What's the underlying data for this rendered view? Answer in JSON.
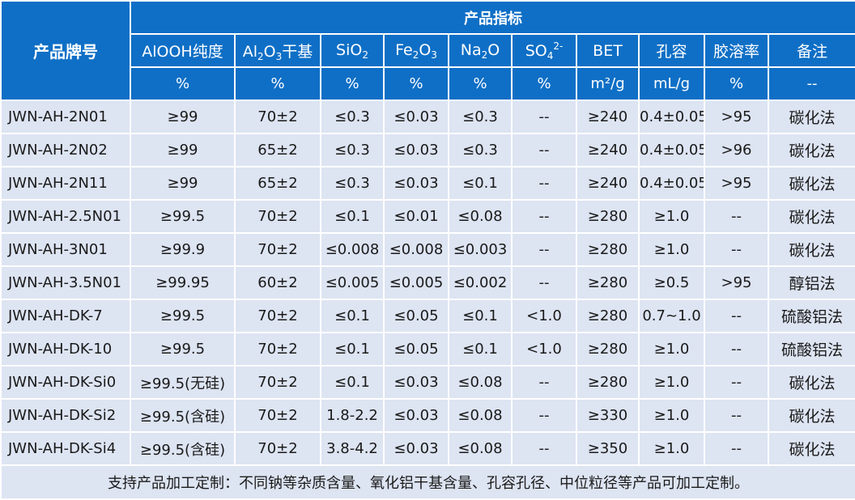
{
  "header": {
    "product_col": "产品牌号",
    "group": "产品指标",
    "columns": [
      {
        "key": "alooh",
        "parts": [
          {
            "t": "AlOOH纯度"
          }
        ],
        "unit": "%"
      },
      {
        "key": "al2o3",
        "parts": [
          {
            "t": "Al"
          },
          {
            "t": "2",
            "s": "sub"
          },
          {
            "t": "O"
          },
          {
            "t": "3",
            "s": "sub"
          },
          {
            "t": "干基"
          }
        ],
        "unit": "%"
      },
      {
        "key": "sio2",
        "parts": [
          {
            "t": "SiO"
          },
          {
            "t": "2",
            "s": "sub"
          }
        ],
        "unit": "%"
      },
      {
        "key": "fe2o3",
        "parts": [
          {
            "t": "Fe"
          },
          {
            "t": "2",
            "s": "sub"
          },
          {
            "t": "O"
          },
          {
            "t": "3",
            "s": "sub"
          }
        ],
        "unit": "%"
      },
      {
        "key": "na2o",
        "parts": [
          {
            "t": "Na"
          },
          {
            "t": "2",
            "s": "sub"
          },
          {
            "t": "O"
          }
        ],
        "unit": "%"
      },
      {
        "key": "so4",
        "parts": [
          {
            "t": "SO"
          },
          {
            "t": "4",
            "s": "sub"
          },
          {
            "t": "2-",
            "s": "sup"
          }
        ],
        "unit": "%"
      },
      {
        "key": "bet",
        "parts": [
          {
            "t": "BET"
          }
        ],
        "unit": "m²/g"
      },
      {
        "key": "pore",
        "parts": [
          {
            "t": "孔容"
          }
        ],
        "unit": "mL/g"
      },
      {
        "key": "gel",
        "parts": [
          {
            "t": "胶溶率"
          }
        ],
        "unit": "%"
      },
      {
        "key": "note",
        "parts": [
          {
            "t": "备注"
          }
        ],
        "unit": "--"
      }
    ]
  },
  "rows": [
    {
      "name": "JWN-AH-2N01",
      "values": [
        "≥99",
        "70±2",
        "≤0.3",
        "≤0.03",
        "≤0.3",
        "--",
        "≥240",
        "0.4±0.05",
        ">95",
        "碳化法"
      ]
    },
    {
      "name": "JWN-AH-2N02",
      "values": [
        "≥99",
        "65±2",
        "≤0.3",
        "≤0.03",
        "≤0.3",
        "--",
        "≥240",
        "0.4±0.05",
        ">96",
        "碳化法"
      ]
    },
    {
      "name": "JWN-AH-2N11",
      "values": [
        "≥99",
        "65±2",
        "≤0.3",
        "≤0.03",
        "≤0.1",
        "--",
        "≥240",
        "0.4±0.05",
        ">95",
        "碳化法"
      ]
    },
    {
      "name": "JWN-AH-2.5N01",
      "values": [
        "≥99.5",
        "70±2",
        "≤0.1",
        "≤0.01",
        "≤0.08",
        "--",
        "≥280",
        "≥1.0",
        "--",
        "碳化法"
      ]
    },
    {
      "name": "JWN-AH-3N01",
      "values": [
        "≥99.9",
        "70±2",
        "≤0.008",
        "≤0.008",
        "≤0.003",
        "--",
        "≥280",
        "≥1.0",
        "--",
        "碳化法"
      ]
    },
    {
      "name": "JWN-AH-3.5N01",
      "values": [
        "≥99.95",
        "60±2",
        "≤0.005",
        "≤0.005",
        "≤0.002",
        "--",
        "≥280",
        "≥0.5",
        ">95",
        "醇铝法"
      ]
    },
    {
      "name": "JWN-AH-DK-7",
      "values": [
        "≥99.5",
        "70±2",
        "≤0.1",
        "≤0.05",
        "≤0.1",
        "<1.0",
        "≥280",
        "0.7~1.0",
        "--",
        "硫酸铝法"
      ]
    },
    {
      "name": "JWN-AH-DK-10",
      "values": [
        "≥99.5",
        "70±2",
        "≤0.1",
        "≤0.05",
        "≤0.1",
        "<1.0",
        "≥280",
        "≥1.0",
        "--",
        "硫酸铝法"
      ]
    },
    {
      "name": "JWN-AH-DK-Si0",
      "values": [
        "≥99.5(无硅)",
        "70±2",
        "≤0.1",
        "≤0.03",
        "≤0.08",
        "--",
        "≥280",
        "≥1.0",
        "--",
        "碳化法"
      ]
    },
    {
      "name": "JWN-AH-DK-Si2",
      "values": [
        "≥99.5(含硅)",
        "70±2",
        "1.8-2.2",
        "≤0.03",
        "≤0.08",
        "--",
        "≥330",
        "≥1.0",
        "--",
        "碳化法"
      ]
    },
    {
      "name": "JWN-AH-DK-Si4",
      "values": [
        "≥99.5(含硅)",
        "70±2",
        "3.8-4.2",
        "≤0.03",
        "≤0.08",
        "--",
        "≥350",
        "≥1.0",
        "--",
        "碳化法"
      ]
    }
  ],
  "footer": "支持产品加工定制：不同钠等杂质含量、氧化铝干基含量、孔容孔径、中位粒径等产品可加工定制。"
}
